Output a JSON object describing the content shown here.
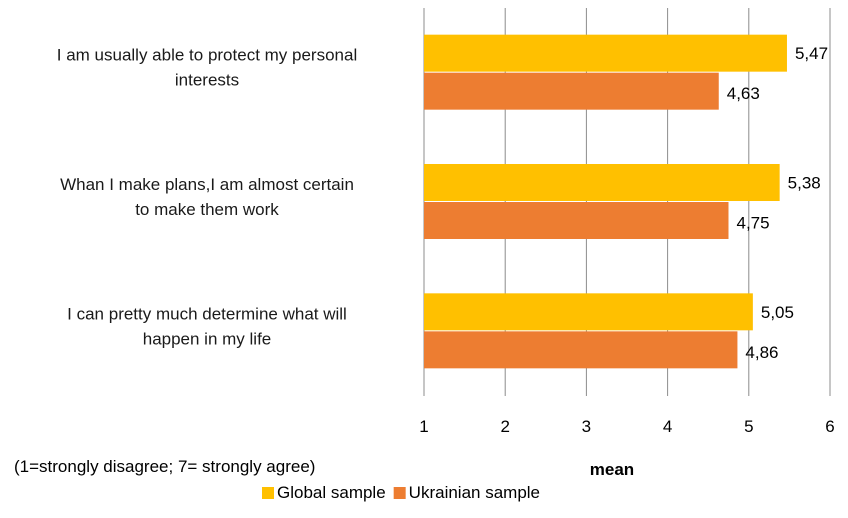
{
  "chart_data": {
    "type": "bar",
    "orientation": "horizontal",
    "categories": [
      [
        "I am usually able to protect my personal",
        "interests"
      ],
      [
        "Whan I make plans,I am almost certain",
        "to make them work"
      ],
      [
        "I can pretty much determine what will",
        "happen in my life"
      ]
    ],
    "series": [
      {
        "name": "Global sample",
        "color": "#ffc000",
        "values": [
          5.47,
          5.38,
          5.05
        ],
        "labels": [
          "5,47",
          "5,38",
          "5,05"
        ]
      },
      {
        "name": "Ukrainian sample",
        "color": "#ed7d31",
        "values": [
          4.63,
          4.75,
          4.86
        ],
        "labels": [
          "4,63",
          "4,75",
          "4,86"
        ]
      }
    ],
    "xlim": [
      1,
      6
    ],
    "xticks": [
      "1",
      "2",
      "3",
      "4",
      "5",
      "6"
    ],
    "xlabel": "mean",
    "note": "(1=strongly disagree; 7= strongly agree)",
    "grid": true,
    "legend": "bottom-center",
    "gridline_color": "#8c8c8c"
  }
}
